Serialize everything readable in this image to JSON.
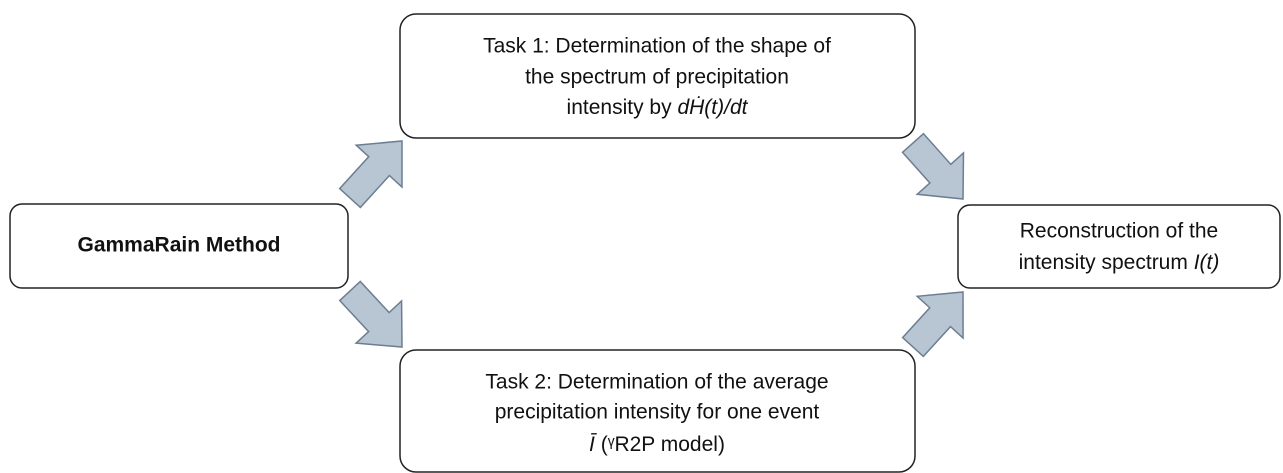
{
  "nodes": [
    {
      "label": "GammaRain Method"
    },
    {
      "lines": [
        "Task 1: Determination of the shape of",
        "the spectrum of precipitation",
        "intensity by "
      ],
      "math": "dḢ(t)/dt"
    },
    {
      "lines": [
        "Task 2: Determination of the average",
        "precipitation intensity for one event"
      ],
      "math": "Ī",
      "suffix": " (ᵞR2P model)"
    },
    {
      "lines": [
        "Reconstruction of the",
        "intensity spectrum "
      ],
      "math": "I(t)"
    }
  ]
}
